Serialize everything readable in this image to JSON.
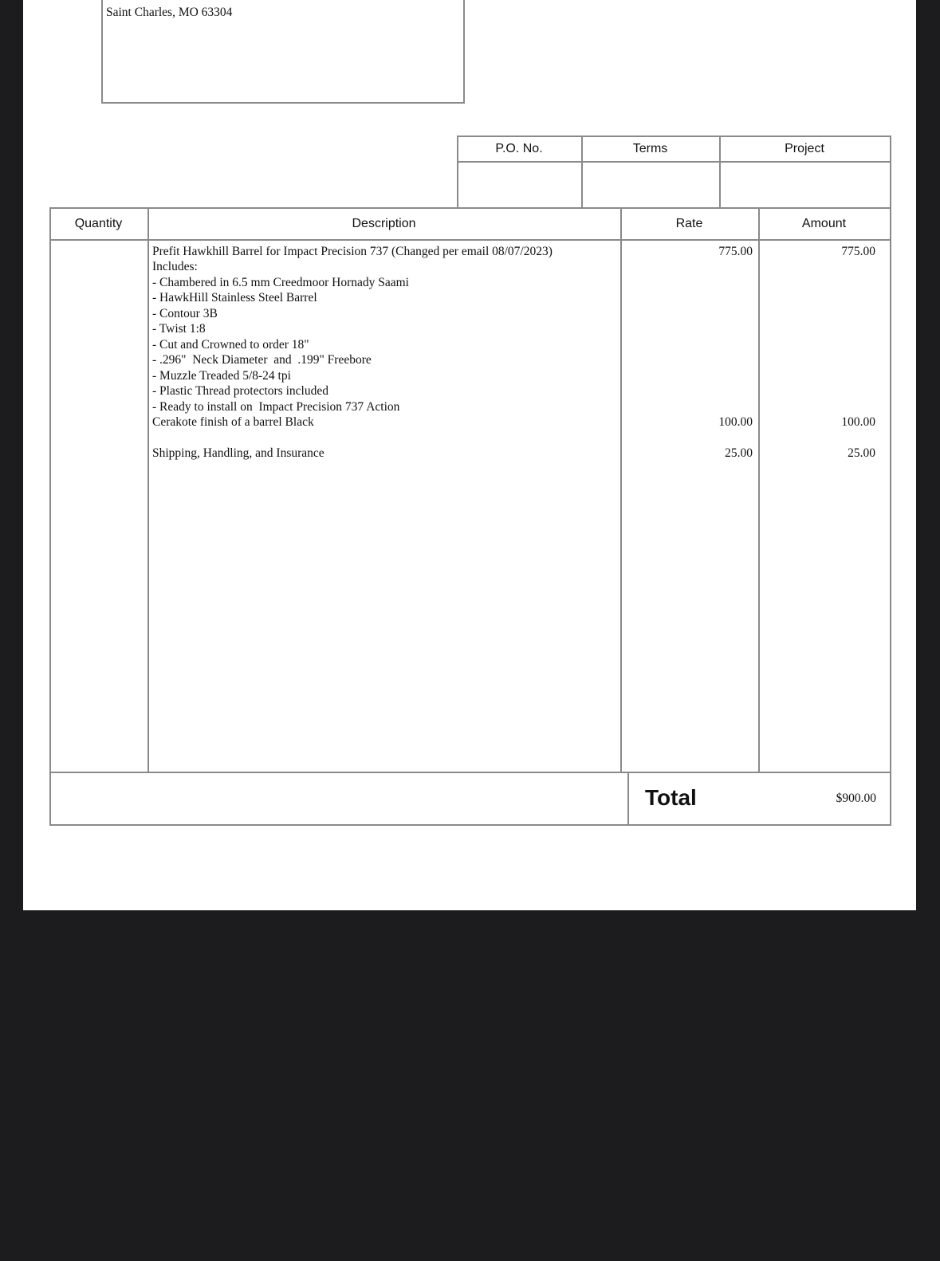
{
  "address": {
    "lines": [
      "Saint Charles, MO 63304"
    ]
  },
  "po_table": {
    "headers": [
      "P.O. No.",
      "Terms",
      "Project"
    ]
  },
  "items_table": {
    "headers": [
      "Quantity",
      "Description",
      "Rate",
      "Amount"
    ],
    "rows": [
      {
        "description": [
          "Prefit Hawkhill Barrel for Impact Precision 737 (Changed per email 08/07/2023)",
          "Includes:",
          "- Chambered in 6.5 mm Creedmoor Hornady Saami",
          "- HawkHill Stainless Steel Barrel",
          "- Contour 3B",
          "- Twist 1:8",
          "- Cut and Crowned to order 18\"",
          "- .296\"  Neck Diameter  and  .199\" Freebore",
          "- Muzzle Treaded 5/8-24 tpi",
          "- Plastic Thread protectors included",
          "- Ready to install on  Impact Precision 737 Action"
        ],
        "rate": "775.00",
        "amount": "775.00"
      },
      {
        "description": [
          "Cerakote finish of a barrel Black"
        ],
        "rate": "100.00",
        "amount": "100.00"
      },
      {
        "description": [
          "Shipping, Handling, and Insurance"
        ],
        "rate": "25.00",
        "amount": "25.00"
      }
    ]
  },
  "total": {
    "label": "Total",
    "amount": "$900.00"
  }
}
